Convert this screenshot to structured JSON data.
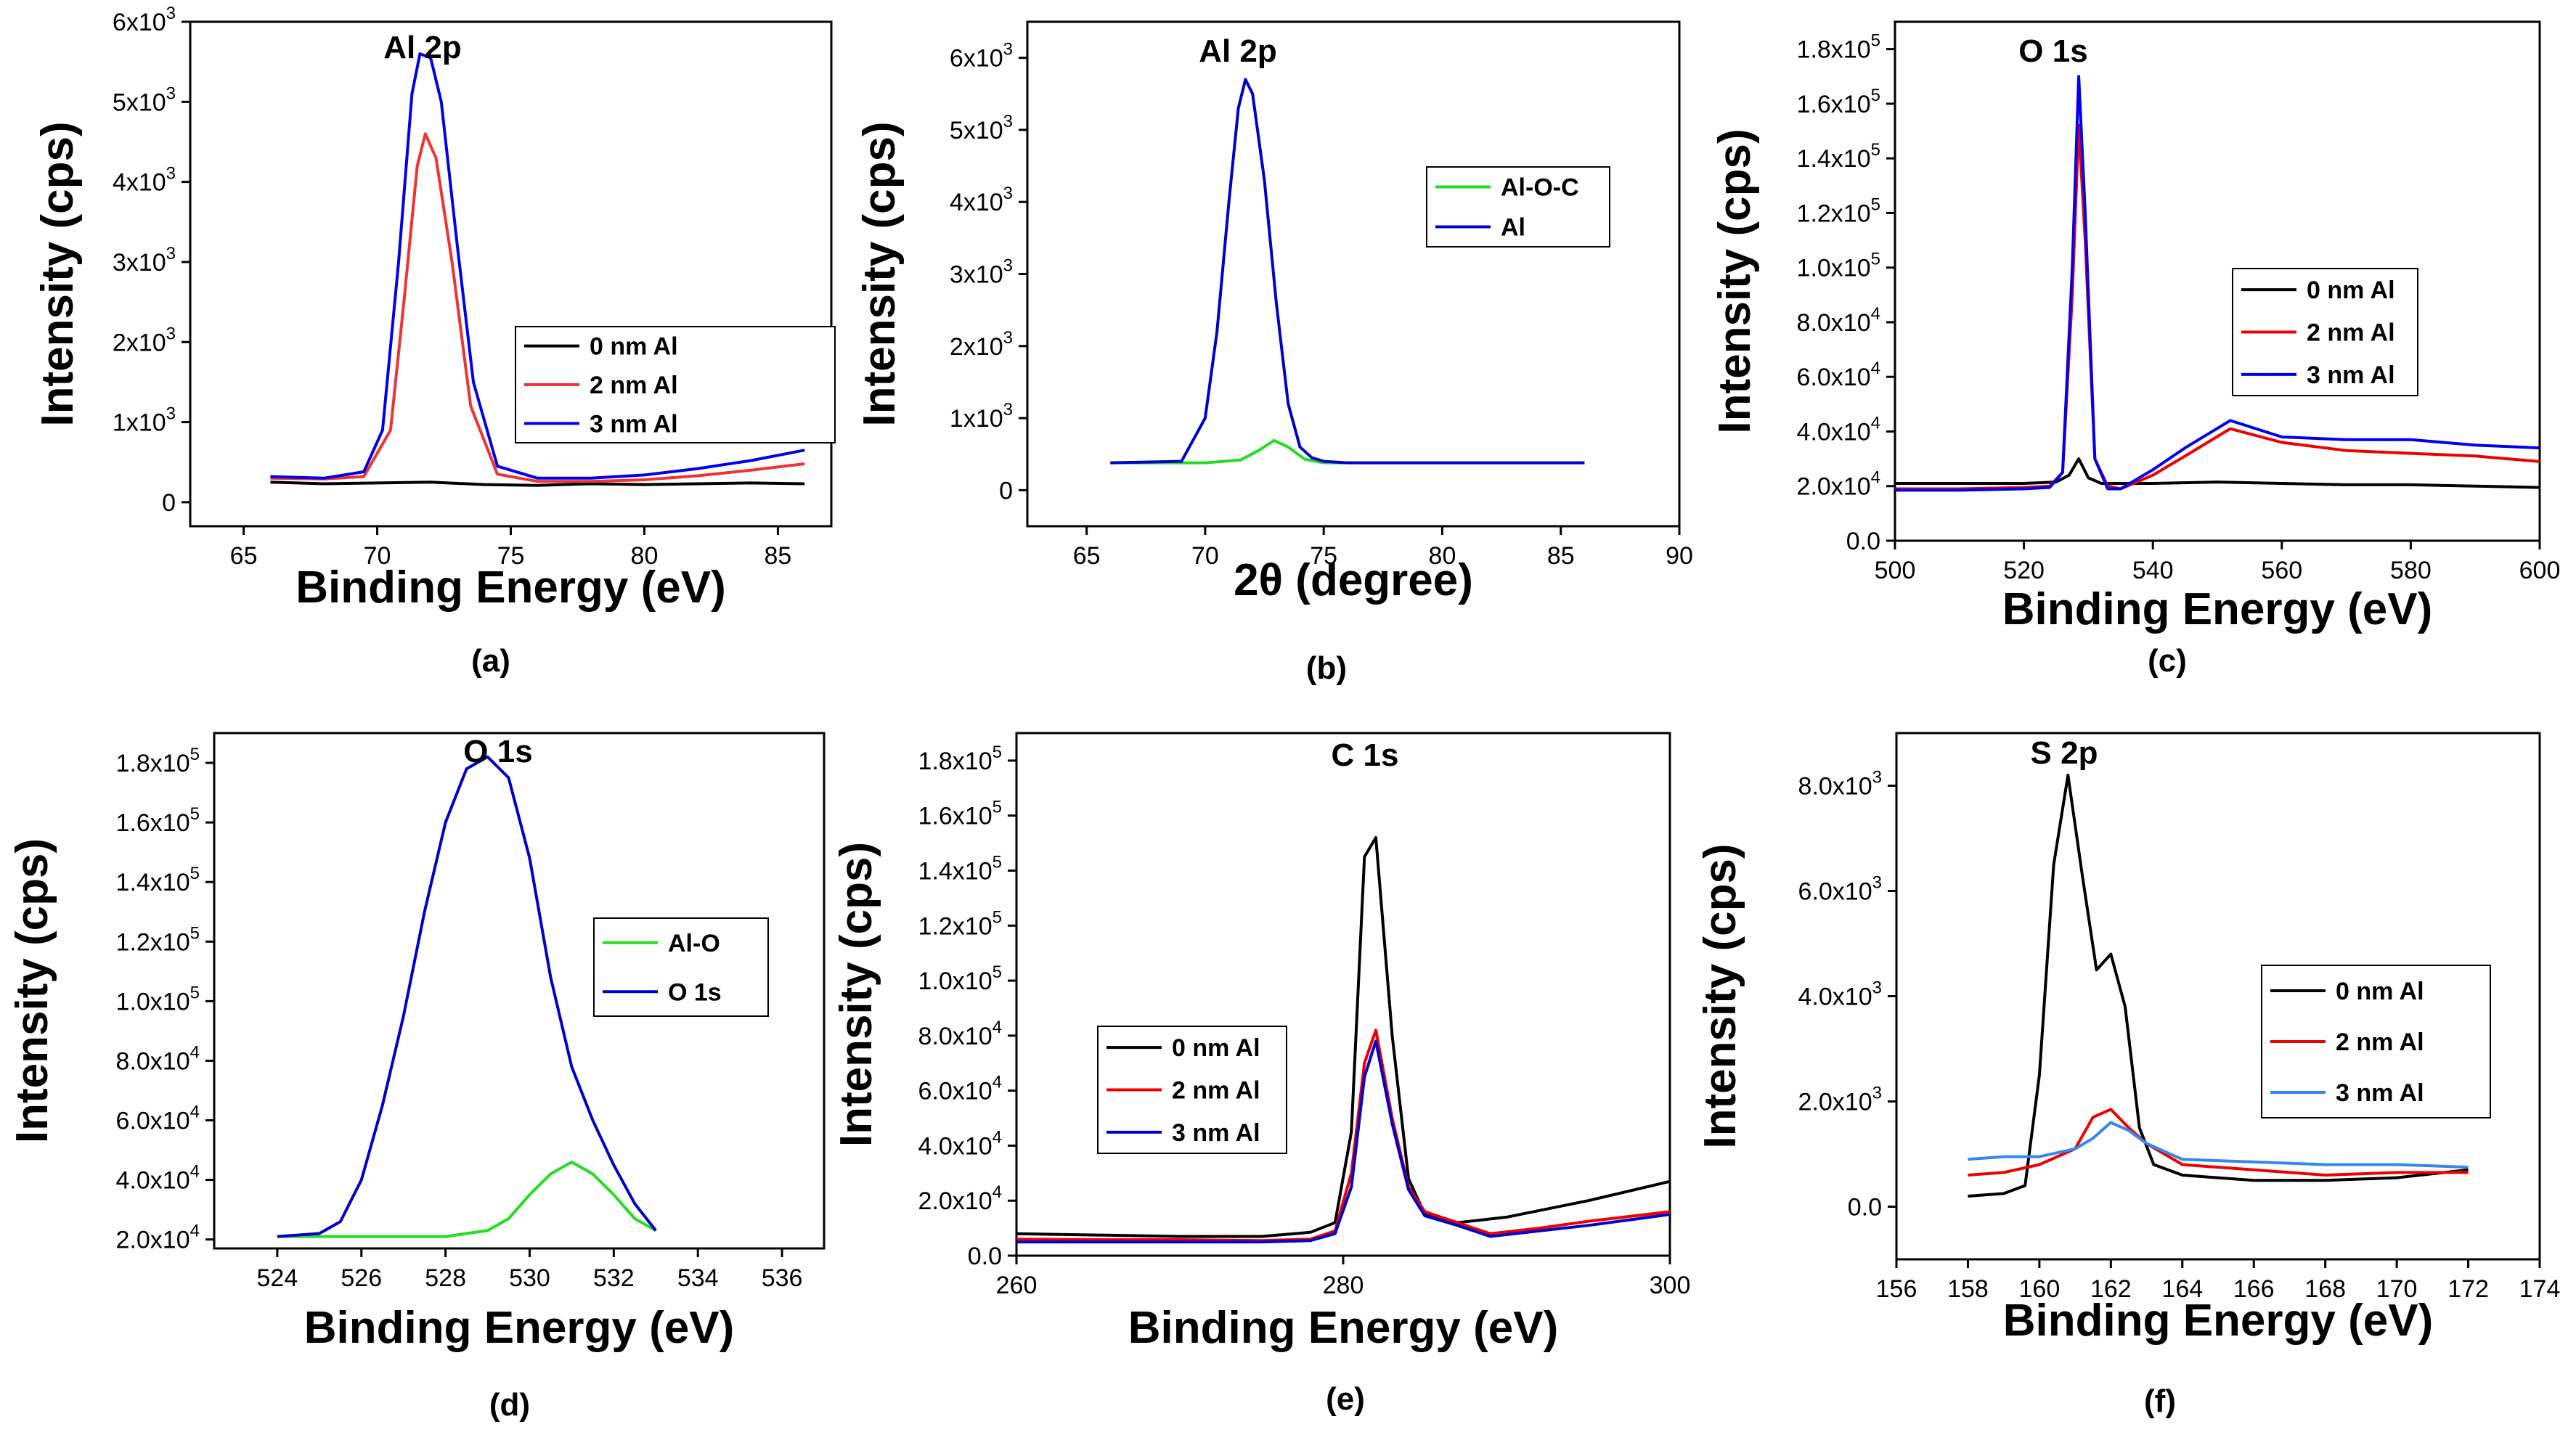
{
  "chart_data": [
    {
      "panel": "(a)",
      "type": "line",
      "title": "Al 2p",
      "xlabel": "Binding Energy (eV)",
      "ylabel": "Intensity (cps)",
      "xlim": [
        63,
        87
      ],
      "ylim": [
        -300,
        6000
      ],
      "xticks": [
        "65",
        "70",
        "75",
        "80",
        "85"
      ],
      "yticks": [
        {
          "v": 0,
          "label": "0",
          "exp": ""
        },
        {
          "v": 1000,
          "label": "1x10",
          "exp": "3"
        },
        {
          "v": 2000,
          "label": "2x10",
          "exp": "3"
        },
        {
          "v": 3000,
          "label": "3x10",
          "exp": "3"
        },
        {
          "v": 4000,
          "label": "4x10",
          "exp": "3"
        },
        {
          "v": 5000,
          "label": "5x10",
          "exp": "3"
        },
        {
          "v": 6000,
          "label": "6x10",
          "exp": "3"
        }
      ],
      "legend_position": "middle-right",
      "series": [
        {
          "name": "0 nm Al",
          "color": "#000000",
          "x": [
            66,
            68,
            70,
            72,
            74,
            76,
            78,
            80,
            82,
            84,
            86
          ],
          "y": [
            250,
            230,
            240,
            250,
            220,
            210,
            230,
            220,
            230,
            240,
            230
          ]
        },
        {
          "name": "2 nm Al",
          "color": "#ee3333",
          "x": [
            66,
            68,
            69.5,
            70.5,
            71,
            71.5,
            71.8,
            72.2,
            72.8,
            73.5,
            74.5,
            76,
            78,
            80,
            82,
            84,
            86
          ],
          "y": [
            300,
            290,
            320,
            900,
            2500,
            4200,
            4600,
            4300,
            3000,
            1200,
            350,
            260,
            260,
            280,
            330,
            400,
            480
          ]
        },
        {
          "name": "3 nm Al",
          "color": "#0000ee",
          "x": [
            66,
            68,
            69.5,
            70.2,
            70.8,
            71.3,
            71.6,
            72,
            72.4,
            73,
            73.6,
            74.5,
            76,
            78,
            80,
            82,
            84,
            86
          ],
          "y": [
            320,
            300,
            380,
            900,
            3000,
            5100,
            5600,
            5550,
            5000,
            3200,
            1500,
            450,
            300,
            300,
            340,
            420,
            520,
            650
          ]
        }
      ]
    },
    {
      "panel": "(b)",
      "type": "line",
      "title": "Al 2p",
      "xlabel": "2θ (degree)",
      "ylabel": "Intensity (cps)",
      "xlim": [
        62.5,
        90
      ],
      "ylim": [
        -500,
        6500
      ],
      "xticks": [
        "65",
        "70",
        "75",
        "80",
        "85",
        "90"
      ],
      "yticks": [
        {
          "v": 0,
          "label": "0",
          "exp": ""
        },
        {
          "v": 1000,
          "label": "1x10",
          "exp": "3"
        },
        {
          "v": 2000,
          "label": "2x10",
          "exp": "3"
        },
        {
          "v": 3000,
          "label": "3x10",
          "exp": "3"
        },
        {
          "v": 4000,
          "label": "4x10",
          "exp": "3"
        },
        {
          "v": 5000,
          "label": "5x10",
          "exp": "3"
        },
        {
          "v": 6000,
          "label": "6x10",
          "exp": "3"
        }
      ],
      "legend_position": "top-right",
      "series": [
        {
          "name": "Al-O-C",
          "color": "#22dd22",
          "x": [
            66,
            70,
            71.5,
            72.3,
            72.9,
            73.5,
            74.2,
            75,
            86
          ],
          "y": [
            380,
            380,
            420,
            560,
            690,
            600,
            430,
            380,
            380
          ]
        },
        {
          "name": "Al",
          "color": "#0000cc",
          "x": [
            66,
            69,
            70,
            70.5,
            71,
            71.4,
            71.7,
            72,
            72.5,
            73,
            73.5,
            74,
            74.5,
            75,
            76,
            86
          ],
          "y": [
            380,
            400,
            1000,
            2200,
            4000,
            5300,
            5700,
            5500,
            4300,
            2600,
            1200,
            600,
            450,
            400,
            380,
            380
          ]
        }
      ]
    },
    {
      "panel": "(c)",
      "type": "line",
      "title": "O 1s",
      "xlabel": "Binding Energy (eV)",
      "ylabel": "Intensity (cps)",
      "xlim": [
        500,
        600
      ],
      "ylim": [
        0,
        190000
      ],
      "xticks": [
        "500",
        "520",
        "540",
        "560",
        "580",
        "600"
      ],
      "yticks": [
        {
          "v": 0,
          "label": "0.0",
          "exp": ""
        },
        {
          "v": 20000,
          "label": "2.0x10",
          "exp": "4"
        },
        {
          "v": 40000,
          "label": "4.0x10",
          "exp": "4"
        },
        {
          "v": 60000,
          "label": "6.0x10",
          "exp": "4"
        },
        {
          "v": 80000,
          "label": "8.0x10",
          "exp": "4"
        },
        {
          "v": 100000,
          "label": "1.0x10",
          "exp": "5"
        },
        {
          "v": 120000,
          "label": "1.2x10",
          "exp": "5"
        },
        {
          "v": 140000,
          "label": "1.4x10",
          "exp": "5"
        },
        {
          "v": 160000,
          "label": "1.6x10",
          "exp": "5"
        },
        {
          "v": 180000,
          "label": "1.8x10",
          "exp": "5"
        }
      ],
      "legend_position": "middle-right",
      "series": [
        {
          "name": "0 nm Al",
          "color": "#000000",
          "x": [
            500,
            510,
            520,
            525,
            527,
            528.5,
            530,
            532,
            540,
            550,
            560,
            570,
            580,
            590,
            600
          ],
          "y": [
            21000,
            21000,
            21000,
            21500,
            24000,
            30000,
            23000,
            21000,
            21000,
            21500,
            21000,
            20500,
            20500,
            20000,
            19500
          ]
        },
        {
          "name": "2 nm Al",
          "color": "#ee0000",
          "x": [
            500,
            510,
            520,
            524,
            526,
            527.5,
            528.5,
            529.5,
            531,
            533,
            535,
            540,
            545,
            552,
            560,
            570,
            580,
            590,
            600
          ],
          "y": [
            19000,
            19000,
            19500,
            20000,
            25000,
            90000,
            152000,
            110000,
            30000,
            20000,
            19000,
            24000,
            31000,
            41000,
            36000,
            33000,
            32000,
            31000,
            29000
          ]
        },
        {
          "name": "3 nm Al",
          "color": "#0000ee",
          "x": [
            500,
            510,
            520,
            524,
            526,
            527.5,
            528.5,
            529.5,
            531,
            533,
            535,
            540,
            545,
            552,
            560,
            570,
            580,
            590,
            600
          ],
          "y": [
            18500,
            18500,
            19000,
            19500,
            25000,
            100000,
            170000,
            120000,
            30000,
            19000,
            19000,
            26000,
            34000,
            44000,
            38000,
            37000,
            37000,
            35000,
            34000
          ]
        }
      ]
    },
    {
      "panel": "(d)",
      "type": "line",
      "title": "O 1s",
      "xlabel": "Binding Energy (eV)",
      "ylabel": "Intensity (cps)",
      "xlim": [
        522.5,
        537
      ],
      "ylim": [
        17000,
        190000
      ],
      "xticks": [
        "524",
        "526",
        "528",
        "530",
        "532",
        "534",
        "536"
      ],
      "yticks": [
        {
          "v": 20000,
          "label": "2.0x10",
          "exp": "4"
        },
        {
          "v": 40000,
          "label": "4.0x10",
          "exp": "4"
        },
        {
          "v": 60000,
          "label": "6.0x10",
          "exp": "4"
        },
        {
          "v": 80000,
          "label": "8.0x10",
          "exp": "4"
        },
        {
          "v": 100000,
          "label": "1.0x10",
          "exp": "5"
        },
        {
          "v": 120000,
          "label": "1.2x10",
          "exp": "5"
        },
        {
          "v": 140000,
          "label": "1.4x10",
          "exp": "5"
        },
        {
          "v": 160000,
          "label": "1.6x10",
          "exp": "5"
        },
        {
          "v": 180000,
          "label": "1.8x10",
          "exp": "5"
        }
      ],
      "legend_position": "middle-right",
      "series": [
        {
          "name": "Al-O",
          "color": "#22dd22",
          "x": [
            524,
            526,
            528,
            529,
            529.5,
            530,
            530.5,
            531,
            531.5,
            532,
            532.5,
            533
          ],
          "y": [
            21000,
            21000,
            21000,
            23000,
            27000,
            35000,
            42000,
            46000,
            42000,
            35000,
            27000,
            23000
          ]
        },
        {
          "name": "O 1s",
          "color": "#0000cc",
          "x": [
            524,
            525,
            525.5,
            526,
            526.5,
            527,
            527.5,
            528,
            528.5,
            529,
            529.5,
            530,
            530.5,
            531,
            531.5,
            532,
            532.5,
            533
          ],
          "y": [
            21000,
            22000,
            26000,
            40000,
            65000,
            95000,
            130000,
            160000,
            178000,
            182000,
            175000,
            148000,
            108000,
            78000,
            60000,
            45000,
            32000,
            23000
          ]
        }
      ]
    },
    {
      "panel": "(e)",
      "type": "line",
      "title": "C 1s",
      "xlabel": "Binding Energy (eV)",
      "ylabel": "Intensity (cps)",
      "xlim": [
        260,
        300
      ],
      "ylim": [
        0,
        190000
      ],
      "xticks": [
        "260",
        "280",
        "300"
      ],
      "yticks": [
        {
          "v": 0,
          "label": "0.0",
          "exp": ""
        },
        {
          "v": 20000,
          "label": "2.0x10",
          "exp": "4"
        },
        {
          "v": 40000,
          "label": "4.0x10",
          "exp": "4"
        },
        {
          "v": 60000,
          "label": "6.0x10",
          "exp": "4"
        },
        {
          "v": 80000,
          "label": "8.0x10",
          "exp": "4"
        },
        {
          "v": 100000,
          "label": "1.0x10",
          "exp": "5"
        },
        {
          "v": 120000,
          "label": "1.2x10",
          "exp": "5"
        },
        {
          "v": 140000,
          "label": "1.4x10",
          "exp": "5"
        },
        {
          "v": 160000,
          "label": "1.6x10",
          "exp": "5"
        },
        {
          "v": 180000,
          "label": "1.8x10",
          "exp": "5"
        }
      ],
      "legend_position": "middle-left",
      "series": [
        {
          "name": "0 nm Al",
          "color": "#000000",
          "x": [
            260,
            265,
            270,
            275,
            278,
            279.5,
            280.5,
            281.3,
            282,
            283,
            284,
            285,
            287,
            290,
            295,
            300
          ],
          "y": [
            8000,
            7500,
            7000,
            7000,
            8500,
            12000,
            45000,
            145000,
            152000,
            80000,
            28000,
            15000,
            12000,
            14000,
            20000,
            27000
          ]
        },
        {
          "name": "2 nm Al",
          "color": "#ee0000",
          "x": [
            260,
            265,
            270,
            275,
            278,
            279.5,
            280.5,
            281.3,
            282,
            283,
            284,
            285,
            287,
            289,
            292,
            295,
            300
          ],
          "y": [
            6000,
            5800,
            5800,
            5500,
            6000,
            9000,
            30000,
            70000,
            82000,
            50000,
            25000,
            16000,
            12000,
            8000,
            10000,
            12500,
            16000
          ]
        },
        {
          "name": "3 nm Al",
          "color": "#0000cc",
          "x": [
            260,
            265,
            270,
            275,
            278,
            279.5,
            280.5,
            281.3,
            282,
            283,
            284,
            285,
            287,
            289,
            292,
            295,
            300
          ],
          "y": [
            5000,
            5000,
            5000,
            5000,
            5500,
            8000,
            25000,
            65000,
            78000,
            48000,
            24000,
            14500,
            11000,
            7000,
            9000,
            11000,
            15000
          ]
        }
      ]
    },
    {
      "panel": "(f)",
      "type": "line",
      "title": "S 2p",
      "xlabel": "Binding Energy (eV)",
      "ylabel": "Intensity (cps)",
      "xlim": [
        156,
        174
      ],
      "ylim": [
        -1000,
        9000
      ],
      "xticks": [
        "156",
        "158",
        "160",
        "162",
        "164",
        "166",
        "168",
        "170",
        "172",
        "174"
      ],
      "yticks": [
        {
          "v": 0,
          "label": "0.0",
          "exp": ""
        },
        {
          "v": 2000,
          "label": "2.0x10",
          "exp": "3"
        },
        {
          "v": 4000,
          "label": "4.0x10",
          "exp": "3"
        },
        {
          "v": 6000,
          "label": "6.0x10",
          "exp": "3"
        },
        {
          "v": 8000,
          "label": "8.0x10",
          "exp": "3"
        }
      ],
      "legend_position": "middle-right",
      "series": [
        {
          "name": "0 nm Al",
          "color": "#000000",
          "x": [
            158,
            159,
            159.6,
            160,
            160.4,
            160.8,
            161.2,
            161.6,
            162,
            162.4,
            162.8,
            163.2,
            164,
            166,
            168,
            170,
            172
          ],
          "y": [
            200,
            250,
            400,
            2500,
            6500,
            8200,
            6300,
            4500,
            4800,
            3800,
            1500,
            800,
            600,
            500,
            500,
            550,
            700
          ]
        },
        {
          "name": "2 nm Al",
          "color": "#ee0000",
          "x": [
            158,
            159,
            160,
            161,
            161.5,
            162,
            162.5,
            163,
            164,
            166,
            168,
            170,
            172
          ],
          "y": [
            600,
            650,
            800,
            1100,
            1700,
            1850,
            1500,
            1200,
            800,
            700,
            600,
            650,
            650
          ]
        },
        {
          "name": "3 nm Al",
          "color": "#3388ee",
          "x": [
            158,
            159,
            160,
            161,
            161.5,
            162,
            162.5,
            163,
            164,
            166,
            168,
            170,
            172
          ],
          "y": [
            900,
            950,
            950,
            1100,
            1300,
            1600,
            1450,
            1200,
            900,
            850,
            800,
            800,
            750
          ]
        }
      ]
    }
  ]
}
